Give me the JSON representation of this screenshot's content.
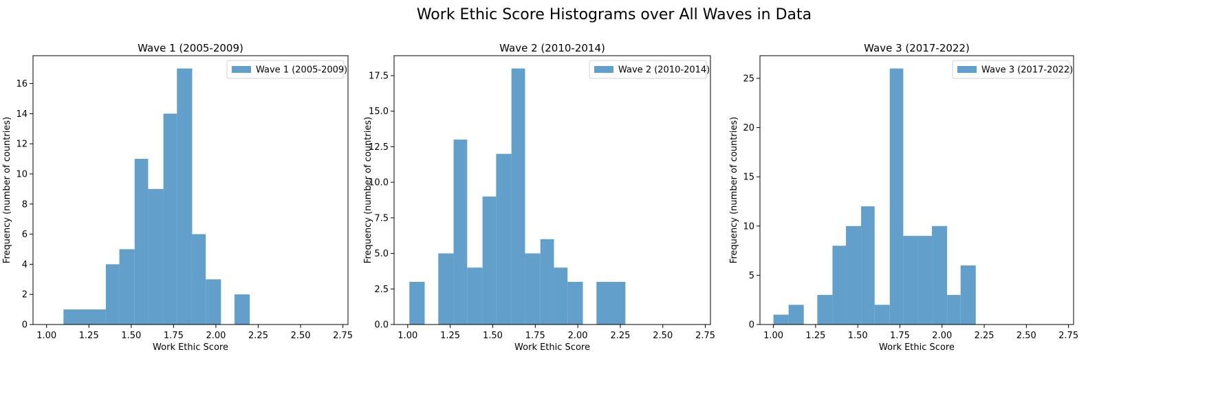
{
  "suptitle": "Work Ethic Score Histograms over All Waves in Data",
  "chart_data": [
    {
      "type": "bar",
      "title": "Wave 1 (2005-2009)",
      "xlabel": "Work Ethic Score",
      "ylabel": "Frequency (number of countries)",
      "legend": "Wave 1 (2005-2009)",
      "legend_position": "top-right",
      "bar_color": "#629fcb",
      "xlim": [
        0.92,
        2.78
      ],
      "ylim": [
        0,
        17.85
      ],
      "xticks": [
        1.0,
        1.25,
        1.5,
        1.75,
        2.0,
        2.25,
        2.5,
        2.75
      ],
      "xtick_labels": [
        "1.00",
        "1.25",
        "1.50",
        "1.75",
        "2.00",
        "2.25",
        "2.50",
        "2.75"
      ],
      "yticks": [
        0,
        2,
        4,
        6,
        8,
        10,
        12,
        14,
        16
      ],
      "ytick_labels": [
        "0",
        "2",
        "4",
        "6",
        "8",
        "10",
        "12",
        "14",
        "16"
      ],
      "bins": [
        {
          "x0": 1.1,
          "x1": 1.35,
          "count": 1
        },
        {
          "x0": 1.35,
          "x1": 1.43,
          "count": 4
        },
        {
          "x0": 1.43,
          "x1": 1.52,
          "count": 5
        },
        {
          "x0": 1.52,
          "x1": 1.6,
          "count": 11
        },
        {
          "x0": 1.6,
          "x1": 1.69,
          "count": 9
        },
        {
          "x0": 1.69,
          "x1": 1.77,
          "count": 14
        },
        {
          "x0": 1.77,
          "x1": 1.86,
          "count": 17
        },
        {
          "x0": 1.86,
          "x1": 1.94,
          "count": 6
        },
        {
          "x0": 1.94,
          "x1": 2.03,
          "count": 3
        },
        {
          "x0": 2.11,
          "x1": 2.2,
          "count": 2
        }
      ]
    },
    {
      "type": "bar",
      "title": "Wave 2 (2010-2014)",
      "xlabel": "Work Ethic Score",
      "ylabel": "Frequency (number of countries)",
      "legend": "Wave 2 (2010-2014)",
      "legend_position": "top-right",
      "bar_color": "#629fcb",
      "xlim": [
        0.92,
        2.78
      ],
      "ylim": [
        0,
        18.9
      ],
      "xticks": [
        1.0,
        1.25,
        1.5,
        1.75,
        2.0,
        2.25,
        2.5,
        2.75
      ],
      "xtick_labels": [
        "1.00",
        "1.25",
        "1.50",
        "1.75",
        "2.00",
        "2.25",
        "2.50",
        "2.75"
      ],
      "yticks": [
        0,
        2.5,
        5,
        7.5,
        10,
        12.5,
        15,
        17.5
      ],
      "ytick_labels": [
        "0.0",
        "2.5",
        "5.0",
        "7.5",
        "10.0",
        "12.5",
        "15.0",
        "17.5"
      ],
      "bins": [
        {
          "x0": 1.01,
          "x1": 1.1,
          "count": 3
        },
        {
          "x0": 1.18,
          "x1": 1.27,
          "count": 5
        },
        {
          "x0": 1.27,
          "x1": 1.35,
          "count": 13
        },
        {
          "x0": 1.35,
          "x1": 1.44,
          "count": 4
        },
        {
          "x0": 1.44,
          "x1": 1.52,
          "count": 9
        },
        {
          "x0": 1.52,
          "x1": 1.61,
          "count": 12
        },
        {
          "x0": 1.61,
          "x1": 1.69,
          "count": 18
        },
        {
          "x0": 1.69,
          "x1": 1.78,
          "count": 5
        },
        {
          "x0": 1.78,
          "x1": 1.86,
          "count": 6
        },
        {
          "x0": 1.86,
          "x1": 1.94,
          "count": 4
        },
        {
          "x0": 1.94,
          "x1": 2.03,
          "count": 3
        },
        {
          "x0": 2.11,
          "x1": 2.28,
          "count": 3
        }
      ]
    },
    {
      "type": "bar",
      "title": "Wave 3 (2017-2022)",
      "xlabel": "Work Ethic Score",
      "ylabel": "Frequency (number of countries)",
      "legend": "Wave 3 (2017-2022)",
      "legend_position": "top-right",
      "bar_color": "#629fcb",
      "xlim": [
        0.92,
        2.78
      ],
      "ylim": [
        0,
        27.3
      ],
      "xticks": [
        1.0,
        1.25,
        1.5,
        1.75,
        2.0,
        2.25,
        2.5,
        2.75
      ],
      "xtick_labels": [
        "1.00",
        "1.25",
        "1.50",
        "1.75",
        "2.00",
        "2.25",
        "2.50",
        "2.75"
      ],
      "yticks": [
        0,
        5,
        10,
        15,
        20,
        25
      ],
      "ytick_labels": [
        "0",
        "5",
        "10",
        "15",
        "20",
        "25"
      ],
      "bins": [
        {
          "x0": 1.0,
          "x1": 1.09,
          "count": 1
        },
        {
          "x0": 1.09,
          "x1": 1.18,
          "count": 2
        },
        {
          "x0": 1.26,
          "x1": 1.35,
          "count": 3
        },
        {
          "x0": 1.35,
          "x1": 1.43,
          "count": 8
        },
        {
          "x0": 1.43,
          "x1": 1.52,
          "count": 10
        },
        {
          "x0": 1.52,
          "x1": 1.6,
          "count": 12
        },
        {
          "x0": 1.6,
          "x1": 1.69,
          "count": 2
        },
        {
          "x0": 1.69,
          "x1": 1.77,
          "count": 26
        },
        {
          "x0": 1.77,
          "x1": 1.86,
          "count": 9
        },
        {
          "x0": 1.86,
          "x1": 1.94,
          "count": 9
        },
        {
          "x0": 1.94,
          "x1": 2.03,
          "count": 10
        },
        {
          "x0": 2.03,
          "x1": 2.11,
          "count": 3
        },
        {
          "x0": 2.11,
          "x1": 2.2,
          "count": 6
        }
      ]
    }
  ]
}
